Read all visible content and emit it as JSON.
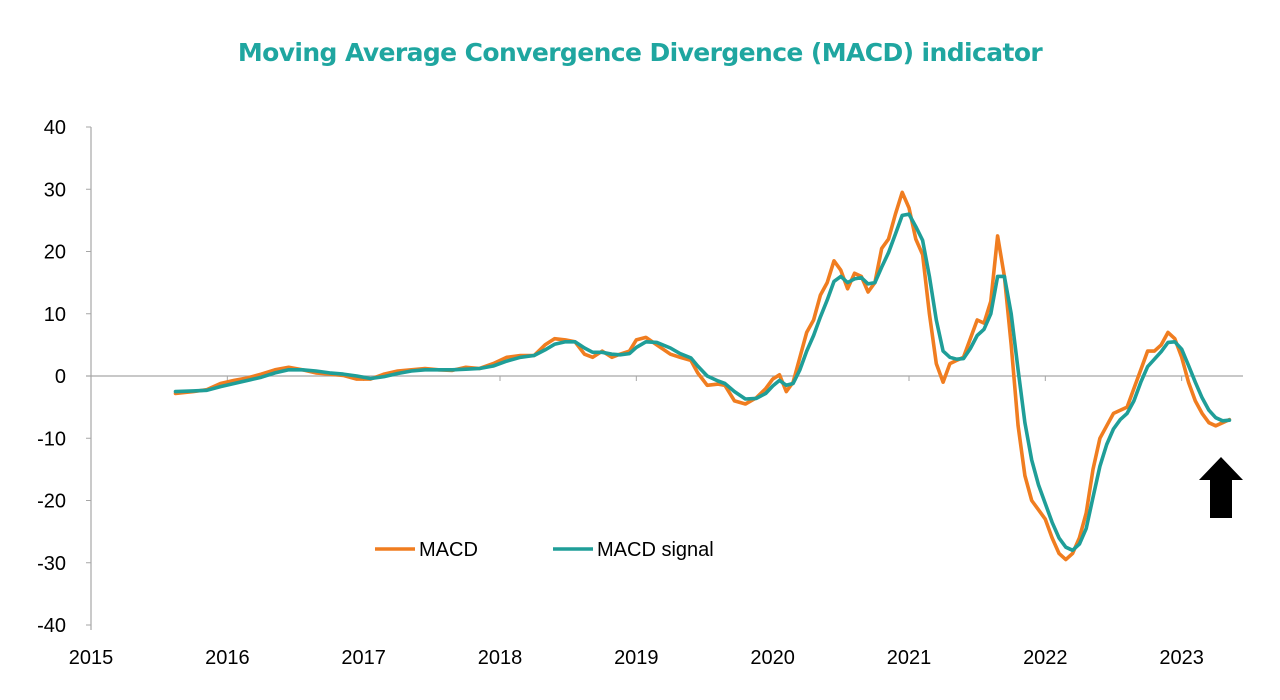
{
  "chart_data": {
    "type": "line",
    "title": "Moving Average Convergence Divergence (MACD) indicator",
    "xlabel": "",
    "ylabel": "",
    "xlim": [
      2015,
      2023.45
    ],
    "ylim": [
      -40,
      40
    ],
    "x_ticks": [
      "2015",
      "2016",
      "2017",
      "2018",
      "2019",
      "2020",
      "2021",
      "2022",
      "2023"
    ],
    "y_ticks": [
      "40",
      "30",
      "20",
      "10",
      "0",
      "-10",
      "-20",
      "-30",
      "-40"
    ],
    "grid": false,
    "legend_placement": "bottom-center",
    "series": [
      {
        "name": "MACD",
        "color": "#f07d20",
        "points": [
          [
            2015.62,
            -2.8
          ],
          [
            2015.75,
            -2.5
          ],
          [
            2015.85,
            -2.2
          ],
          [
            2015.95,
            -1.2
          ],
          [
            2016.05,
            -0.7
          ],
          [
            2016.15,
            -0.3
          ],
          [
            2016.25,
            0.3
          ],
          [
            2016.35,
            1.0
          ],
          [
            2016.45,
            1.4
          ],
          [
            2016.55,
            1.0
          ],
          [
            2016.65,
            0.5
          ],
          [
            2016.75,
            0.3
          ],
          [
            2016.85,
            0.1
          ],
          [
            2016.95,
            -0.5
          ],
          [
            2017.05,
            -0.5
          ],
          [
            2017.15,
            0.3
          ],
          [
            2017.25,
            0.8
          ],
          [
            2017.35,
            1.0
          ],
          [
            2017.45,
            1.2
          ],
          [
            2017.55,
            1.0
          ],
          [
            2017.65,
            0.9
          ],
          [
            2017.75,
            1.4
          ],
          [
            2017.85,
            1.2
          ],
          [
            2017.95,
            2.0
          ],
          [
            2018.05,
            3.0
          ],
          [
            2018.15,
            3.3
          ],
          [
            2018.25,
            3.3
          ],
          [
            2018.33,
            5.0
          ],
          [
            2018.4,
            6.0
          ],
          [
            2018.48,
            5.8
          ],
          [
            2018.55,
            5.5
          ],
          [
            2018.62,
            3.5
          ],
          [
            2018.68,
            3.0
          ],
          [
            2018.75,
            4.0
          ],
          [
            2018.82,
            3.0
          ],
          [
            2018.88,
            3.5
          ],
          [
            2018.95,
            4.0
          ],
          [
            2019.0,
            5.8
          ],
          [
            2019.07,
            6.2
          ],
          [
            2019.15,
            5.0
          ],
          [
            2019.25,
            3.5
          ],
          [
            2019.32,
            3.0
          ],
          [
            2019.4,
            2.5
          ],
          [
            2019.45,
            0.5
          ],
          [
            2019.52,
            -1.5
          ],
          [
            2019.6,
            -1.3
          ],
          [
            2019.65,
            -1.5
          ],
          [
            2019.72,
            -4.0
          ],
          [
            2019.8,
            -4.5
          ],
          [
            2019.88,
            -3.5
          ],
          [
            2019.95,
            -2.0
          ],
          [
            2020.0,
            -0.5
          ],
          [
            2020.05,
            0.2
          ],
          [
            2020.1,
            -2.5
          ],
          [
            2020.15,
            -1.0
          ],
          [
            2020.2,
            3.0
          ],
          [
            2020.25,
            7.0
          ],
          [
            2020.3,
            9.0
          ],
          [
            2020.35,
            13.0
          ],
          [
            2020.4,
            15.0
          ],
          [
            2020.45,
            18.5
          ],
          [
            2020.5,
            17.0
          ],
          [
            2020.55,
            14.0
          ],
          [
            2020.6,
            16.5
          ],
          [
            2020.65,
            16.0
          ],
          [
            2020.7,
            13.5
          ],
          [
            2020.75,
            15.0
          ],
          [
            2020.8,
            20.5
          ],
          [
            2020.85,
            22.0
          ],
          [
            2020.9,
            26.0
          ],
          [
            2020.95,
            29.5
          ],
          [
            2021.0,
            27.0
          ],
          [
            2021.05,
            22.0
          ],
          [
            2021.1,
            19.5
          ],
          [
            2021.15,
            10.0
          ],
          [
            2021.2,
            2.0
          ],
          [
            2021.25,
            -1.0
          ],
          [
            2021.3,
            2.0
          ],
          [
            2021.35,
            2.5
          ],
          [
            2021.4,
            3.0
          ],
          [
            2021.45,
            6.0
          ],
          [
            2021.5,
            9.0
          ],
          [
            2021.55,
            8.5
          ],
          [
            2021.6,
            12.0
          ],
          [
            2021.65,
            22.5
          ],
          [
            2021.7,
            16.0
          ],
          [
            2021.75,
            5.0
          ],
          [
            2021.8,
            -8.0
          ],
          [
            2021.85,
            -16.0
          ],
          [
            2021.9,
            -20.0
          ],
          [
            2021.95,
            -21.5
          ],
          [
            2022.0,
            -23.0
          ],
          [
            2022.05,
            -26.0
          ],
          [
            2022.1,
            -28.5
          ],
          [
            2022.15,
            -29.5
          ],
          [
            2022.2,
            -28.5
          ],
          [
            2022.25,
            -26.0
          ],
          [
            2022.3,
            -22.0
          ],
          [
            2022.35,
            -15.0
          ],
          [
            2022.4,
            -10.0
          ],
          [
            2022.45,
            -8.0
          ],
          [
            2022.5,
            -6.0
          ],
          [
            2022.55,
            -5.5
          ],
          [
            2022.6,
            -5.0
          ],
          [
            2022.65,
            -2.0
          ],
          [
            2022.7,
            1.0
          ],
          [
            2022.75,
            4.0
          ],
          [
            2022.8,
            4.0
          ],
          [
            2022.85,
            5.0
          ],
          [
            2022.9,
            7.0
          ],
          [
            2022.95,
            6.0
          ],
          [
            2023.0,
            3.0
          ],
          [
            2023.05,
            -1.0
          ],
          [
            2023.1,
            -4.0
          ],
          [
            2023.15,
            -6.0
          ],
          [
            2023.2,
            -7.5
          ],
          [
            2023.25,
            -8.0
          ],
          [
            2023.3,
            -7.5
          ],
          [
            2023.35,
            -7.0
          ]
        ]
      },
      {
        "name": "MACD signal",
        "color": "#1f9e98",
        "points": [
          [
            2015.62,
            -2.5
          ],
          [
            2015.75,
            -2.4
          ],
          [
            2015.85,
            -2.3
          ],
          [
            2015.95,
            -1.7
          ],
          [
            2016.05,
            -1.2
          ],
          [
            2016.15,
            -0.7
          ],
          [
            2016.25,
            -0.2
          ],
          [
            2016.35,
            0.5
          ],
          [
            2016.45,
            1.0
          ],
          [
            2016.55,
            1.0
          ],
          [
            2016.65,
            0.8
          ],
          [
            2016.75,
            0.5
          ],
          [
            2016.85,
            0.3
          ],
          [
            2016.95,
            0.0
          ],
          [
            2017.05,
            -0.4
          ],
          [
            2017.15,
            -0.1
          ],
          [
            2017.25,
            0.4
          ],
          [
            2017.35,
            0.8
          ],
          [
            2017.45,
            1.0
          ],
          [
            2017.55,
            1.0
          ],
          [
            2017.65,
            1.0
          ],
          [
            2017.75,
            1.1
          ],
          [
            2017.85,
            1.2
          ],
          [
            2017.95,
            1.6
          ],
          [
            2018.05,
            2.4
          ],
          [
            2018.15,
            3.0
          ],
          [
            2018.25,
            3.3
          ],
          [
            2018.33,
            4.2
          ],
          [
            2018.4,
            5.1
          ],
          [
            2018.48,
            5.5
          ],
          [
            2018.55,
            5.5
          ],
          [
            2018.62,
            4.5
          ],
          [
            2018.68,
            3.8
          ],
          [
            2018.75,
            3.8
          ],
          [
            2018.82,
            3.5
          ],
          [
            2018.88,
            3.4
          ],
          [
            2018.95,
            3.6
          ],
          [
            2019.0,
            4.6
          ],
          [
            2019.07,
            5.5
          ],
          [
            2019.15,
            5.4
          ],
          [
            2019.25,
            4.5
          ],
          [
            2019.32,
            3.6
          ],
          [
            2019.4,
            2.9
          ],
          [
            2019.45,
            1.6
          ],
          [
            2019.52,
            0.0
          ],
          [
            2019.6,
            -0.8
          ],
          [
            2019.65,
            -1.2
          ],
          [
            2019.72,
            -2.5
          ],
          [
            2019.8,
            -3.7
          ],
          [
            2019.88,
            -3.6
          ],
          [
            2019.95,
            -2.8
          ],
          [
            2020.0,
            -1.6
          ],
          [
            2020.05,
            -0.7
          ],
          [
            2020.1,
            -1.5
          ],
          [
            2020.15,
            -1.2
          ],
          [
            2020.2,
            1.0
          ],
          [
            2020.25,
            4.0
          ],
          [
            2020.3,
            6.5
          ],
          [
            2020.35,
            9.5
          ],
          [
            2020.4,
            12.2
          ],
          [
            2020.45,
            15.2
          ],
          [
            2020.5,
            16.0
          ],
          [
            2020.55,
            15.0
          ],
          [
            2020.6,
            15.6
          ],
          [
            2020.65,
            15.8
          ],
          [
            2020.7,
            14.8
          ],
          [
            2020.75,
            15.0
          ],
          [
            2020.8,
            17.5
          ],
          [
            2020.85,
            19.8
          ],
          [
            2020.9,
            22.8
          ],
          [
            2020.95,
            25.8
          ],
          [
            2021.0,
            26.0
          ],
          [
            2021.05,
            24.0
          ],
          [
            2021.1,
            21.8
          ],
          [
            2021.15,
            16.0
          ],
          [
            2021.2,
            9.0
          ],
          [
            2021.25,
            4.0
          ],
          [
            2021.3,
            3.0
          ],
          [
            2021.35,
            2.7
          ],
          [
            2021.4,
            2.8
          ],
          [
            2021.45,
            4.4
          ],
          [
            2021.5,
            6.5
          ],
          [
            2021.55,
            7.5
          ],
          [
            2021.6,
            10.0
          ],
          [
            2021.65,
            16.0
          ],
          [
            2021.7,
            16.0
          ],
          [
            2021.75,
            10.0
          ],
          [
            2021.8,
            1.0
          ],
          [
            2021.85,
            -7.5
          ],
          [
            2021.9,
            -13.5
          ],
          [
            2021.95,
            -17.5
          ],
          [
            2022.0,
            -20.5
          ],
          [
            2022.05,
            -23.5
          ],
          [
            2022.1,
            -26.0
          ],
          [
            2022.15,
            -27.5
          ],
          [
            2022.2,
            -28.0
          ],
          [
            2022.25,
            -27.0
          ],
          [
            2022.3,
            -24.5
          ],
          [
            2022.35,
            -19.5
          ],
          [
            2022.4,
            -14.5
          ],
          [
            2022.45,
            -11.0
          ],
          [
            2022.5,
            -8.5
          ],
          [
            2022.55,
            -7.0
          ],
          [
            2022.6,
            -6.0
          ],
          [
            2022.65,
            -4.0
          ],
          [
            2022.7,
            -1.0
          ],
          [
            2022.75,
            1.5
          ],
          [
            2022.8,
            2.7
          ],
          [
            2022.85,
            3.9
          ],
          [
            2022.9,
            5.4
          ],
          [
            2022.95,
            5.5
          ],
          [
            2023.0,
            4.3
          ],
          [
            2023.05,
            1.7
          ],
          [
            2023.1,
            -1.0
          ],
          [
            2023.15,
            -3.5
          ],
          [
            2023.2,
            -5.5
          ],
          [
            2023.25,
            -6.7
          ],
          [
            2023.3,
            -7.2
          ],
          [
            2023.35,
            -7.1
          ]
        ]
      }
    ],
    "annotations": [
      {
        "type": "arrow",
        "direction": "up",
        "color": "#000000",
        "at_x": 2023.35
      }
    ]
  }
}
